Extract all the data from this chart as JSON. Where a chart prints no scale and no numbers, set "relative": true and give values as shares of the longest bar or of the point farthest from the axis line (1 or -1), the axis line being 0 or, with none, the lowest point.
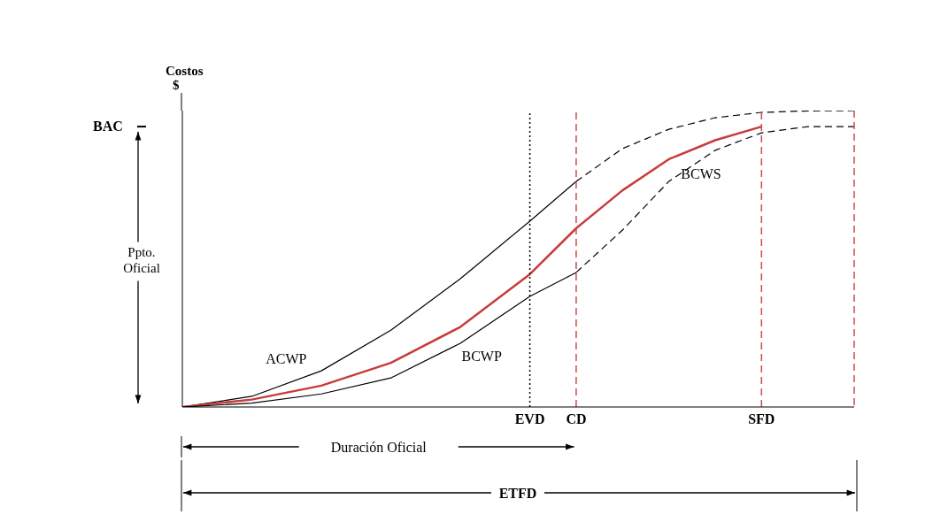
{
  "chart_data": {
    "type": "line",
    "relative": true,
    "ylabel": "Costos\n$",
    "categories": [
      null,
      null,
      null,
      null,
      null,
      null,
      null,
      null,
      null,
      null,
      null,
      null,
      null,
      null,
      null,
      "EVD",
      null,
      "CD",
      null,
      null,
      null,
      null,
      null,
      null,
      null,
      "SFD",
      null,
      null,
      null,
      null
    ],
    "tick_labels": "x",
    "legend": false,
    "marker": "none",
    "series": [
      {
        "name": "ACWP",
        "color": "#000000",
        "line_style": "solid",
        "values": [
          0,
          null,
          null,
          0.036,
          null,
          null,
          0.122,
          null,
          null,
          0.259,
          null,
          null,
          0.433,
          null,
          null,
          0.627,
          null,
          0.761,
          null,
          null,
          null,
          null,
          null,
          null,
          null,
          null,
          null,
          null,
          null,
          null
        ]
      },
      {
        "color": "#000000",
        "line_style": "dashed",
        "values": [
          null,
          null,
          null,
          null,
          null,
          null,
          null,
          null,
          null,
          null,
          null,
          null,
          null,
          null,
          null,
          null,
          null,
          0.761,
          null,
          0.872,
          null,
          0.937,
          null,
          0.976,
          null,
          0.994,
          null,
          0.999,
          null,
          1
        ]
      },
      {
        "name": "BCWS",
        "color": "#c83c3c",
        "line_style": "solid",
        "values": [
          0,
          null,
          null,
          0.025,
          null,
          null,
          0.072,
          null,
          null,
          0.149,
          null,
          null,
          0.27,
          null,
          null,
          0.448,
          null,
          0.603,
          null,
          0.731,
          null,
          0.836,
          null,
          0.9,
          null,
          0.946,
          null,
          null,
          null,
          null
        ]
      },
      {
        "name": "BCWP",
        "color": "#000000",
        "line_style": "solid",
        "values": [
          0,
          null,
          null,
          0.013,
          null,
          null,
          0.044,
          null,
          null,
          0.098,
          null,
          null,
          0.215,
          null,
          null,
          0.373,
          null,
          0.454,
          null,
          null,
          null,
          null,
          null,
          null,
          null,
          null,
          null,
          null,
          null,
          null
        ]
      },
      {
        "color": "#000000",
        "line_style": "dashed",
        "values": [
          null,
          null,
          null,
          null,
          null,
          null,
          null,
          null,
          null,
          null,
          null,
          null,
          null,
          null,
          null,
          null,
          null,
          0.454,
          null,
          0.597,
          null,
          0.761,
          null,
          0.866,
          null,
          0.925,
          null,
          0.946,
          null,
          0.946
        ]
      }
    ],
    "ref_lines": [
      {
        "axis": "y",
        "value": 0.946,
        "label": "BAC",
        "color": "#000000",
        "line_style": "solid"
      },
      {
        "axis": "x",
        "value": "EVD",
        "color": "#000000",
        "line_style": "dotted"
      },
      {
        "axis": "x",
        "value": "CD",
        "color": "#d04848",
        "line_style": "dashed"
      },
      {
        "axis": "x",
        "value": "SFD",
        "color": "#d04848",
        "line_style": "dashed"
      }
    ],
    "annotations": [
      "Ppto. Oficial",
      "Duración Oficial",
      "ETFD"
    ]
  }
}
